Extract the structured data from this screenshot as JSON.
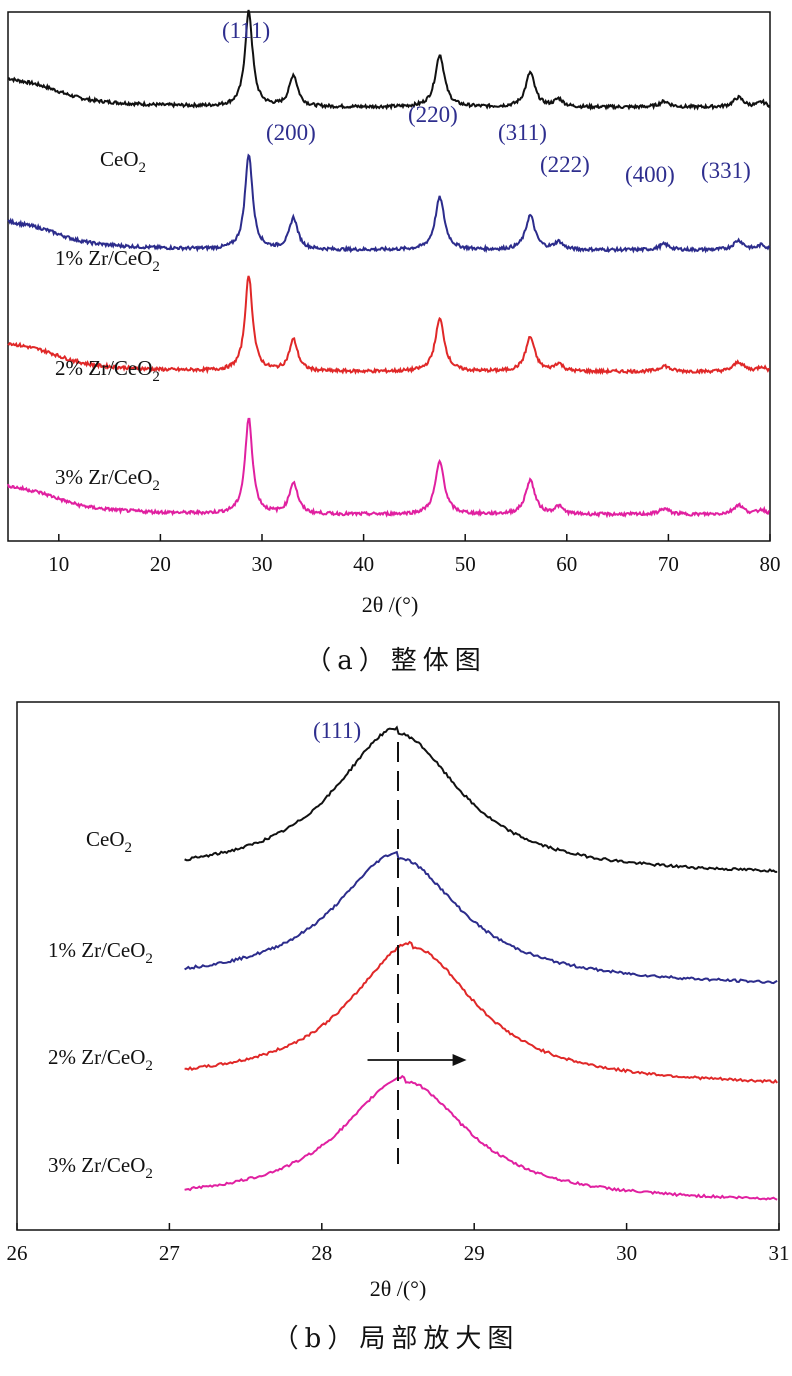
{
  "chart_data": [
    {
      "type": "line",
      "title": "",
      "xlabel": "2θ /(°)",
      "ylabel": "",
      "xlim": [
        5,
        80
      ],
      "ylim": [
        0,
        1
      ],
      "xticks": [
        "10",
        "20",
        "30",
        "40",
        "50",
        "60",
        "70",
        "80"
      ],
      "peak_positions": [
        28.7,
        33.1,
        47.5,
        56.4,
        59.2,
        69.6,
        76.9,
        79.2
      ],
      "series": [
        {
          "name": "CeO₂",
          "label_base": "CeO",
          "label_sub": "2",
          "color": "#111111",
          "baseline": 0.82,
          "peak_heights": [
            1.0,
            0.33,
            0.55,
            0.36,
            0.08,
            0.06,
            0.1,
            0.05
          ]
        },
        {
          "name": "1% Zr/CeO₂",
          "label_base": "1% Zr/CeO",
          "label_sub": "2",
          "color": "#2c2c8c",
          "baseline": 0.55,
          "peak_heights": [
            1.0,
            0.33,
            0.55,
            0.36,
            0.08,
            0.06,
            0.1,
            0.05
          ]
        },
        {
          "name": "2% Zr/CeO₂",
          "label_base": "2% Zr/CeO",
          "label_sub": "2",
          "color": "#e02828",
          "baseline": 0.32,
          "peak_heights": [
            1.0,
            0.33,
            0.55,
            0.36,
            0.08,
            0.06,
            0.1,
            0.05
          ]
        },
        {
          "name": "3% Zr/CeO₂",
          "label_base": "3% Zr/CeO",
          "label_sub": "2",
          "color": "#e020a0",
          "baseline": 0.05,
          "peak_heights": [
            1.0,
            0.33,
            0.55,
            0.36,
            0.08,
            0.06,
            0.1,
            0.05
          ]
        }
      ],
      "annotations": [
        "(111)",
        "(200)",
        "(220)",
        "(311)",
        "(222)",
        "(400)",
        "(331)"
      ],
      "annotation_color": "#2e2e8e",
      "caption": "（a）整体图"
    },
    {
      "type": "line",
      "title": "",
      "xlabel": "2θ /(°)",
      "ylabel": "",
      "xlim": [
        26,
        31
      ],
      "ylim": [
        0,
        1
      ],
      "xticks": [
        "26",
        "27",
        "28",
        "29",
        "30",
        "31"
      ],
      "reference_line_x": 28.5,
      "shift_arrow": {
        "from": 28.3,
        "to": 28.95
      },
      "annotation": "(111)",
      "series": [
        {
          "name": "CeO₂",
          "label_base": "CeO",
          "label_sub": "2",
          "color": "#111111",
          "peak_x": 28.5
        },
        {
          "name": "1% Zr/CeO₂",
          "label_base": "1% Zr/CeO",
          "label_sub": "2",
          "color": "#2c2c8c",
          "peak_x": 28.5
        },
        {
          "name": "2% Zr/CeO₂",
          "label_base": "2% Zr/CeO",
          "label_sub": "2",
          "color": "#e02828",
          "peak_x": 28.6
        },
        {
          "name": "3% Zr/CeO₂",
          "label_base": "3% Zr/CeO",
          "label_sub": "2",
          "color": "#e020a0",
          "peak_x": 28.55
        }
      ],
      "caption": "（b）局部放大图"
    }
  ]
}
